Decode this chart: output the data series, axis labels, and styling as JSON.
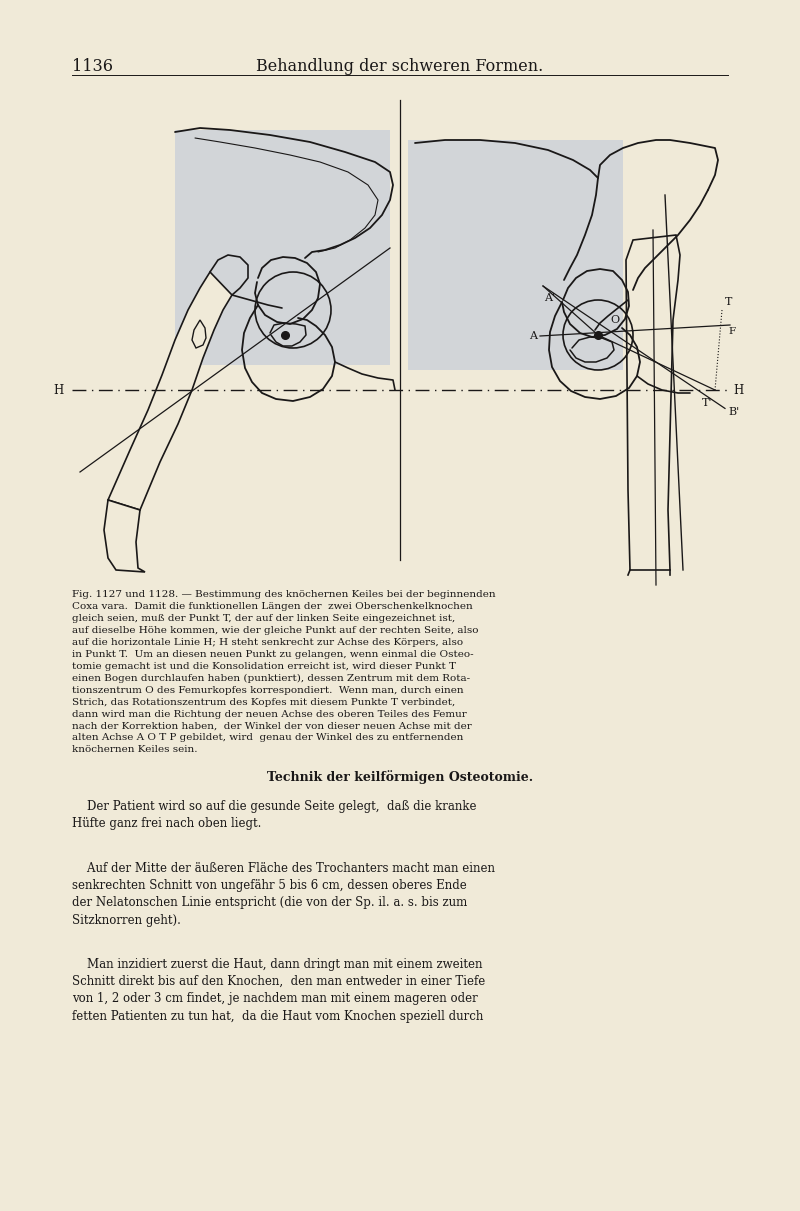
{
  "bg_color": "#f0ead8",
  "page_number": "1136",
  "header_title": "Behandlung der schweren Formen.",
  "header_font_size": 11.5,
  "page_num_font_size": 11.5,
  "fig_caption": "Fig. 1127 und 1128. — Bestimmung des knöchernen Keiles bei der beginnenden\nCoxa vara.  Damit die funktionellen Längen der  zwei Oberschenkelknochen\ngleich seien, muß der Punkt T, der auf der linken Seite eingezeichnet ist,\nauf dieselbe Höhe kommen, wie der gleiche Punkt auf der rechten Seite, also\nauf die horizontale Linie H; H steht senkrecht zur Achse des Körpers, also\nin Punkt T.  Um an diesen neuen Punkt zu gelangen, wenn einmal die Osteo-\ntomie gemacht ist und die Konsolidation erreicht ist, wird dieser Punkt T\neinen Bogen durchlaufen haben (punktiert), dessen Zentrum mit dem Rota-\ntionszentrum O des Femurkopfes korrespondiert.  Wenn man, durch einen\nStrich, das Rotationszentrum des Kopfes mit diesem Punkte T verbindet,\ndann wird man die Richtung der neuen Achse des oberen Teiles des Femur\nnach der Korrektion haben,  der Winkel der von dieser neuen Achse mit der\nalten Achse A O T P gebildet, wird  genau der Winkel des zu entfernenden\nknöchernen Keiles sein.",
  "section_title": "Technik der keilförmigen Osteotomie.",
  "paragraph1": "    Der Patient wird so auf die gesunde Seite gelegt,  daß die kranke\nHüfte ganz frei nach oben liegt.",
  "paragraph2": "    Auf der Mitte der äußeren Fläche des Trochanters macht man einen\nsenkrechten Schnitt von ungefähr 5 bis 6 cm, dessen oberes Ende\nder Nelatonschen Linie entspricht (die von der Sp. il. a. s. bis zum\nSitzknorren geht).",
  "paragraph3": "    Man inzidiert zuerst die Haut, dann dringt man mit einem zweiten\nSchnitt direkt bis auf den Knochen,  den man entweder in einer Tiefe\nvon 1, 2 oder 3 cm findet, je nachdem man mit einem mageren oder\nfetten Patienten zu tun hat,  da die Haut vom Knochen speziell durch",
  "bone_fill": "#c8cfd8",
  "ink": "#1a1818"
}
